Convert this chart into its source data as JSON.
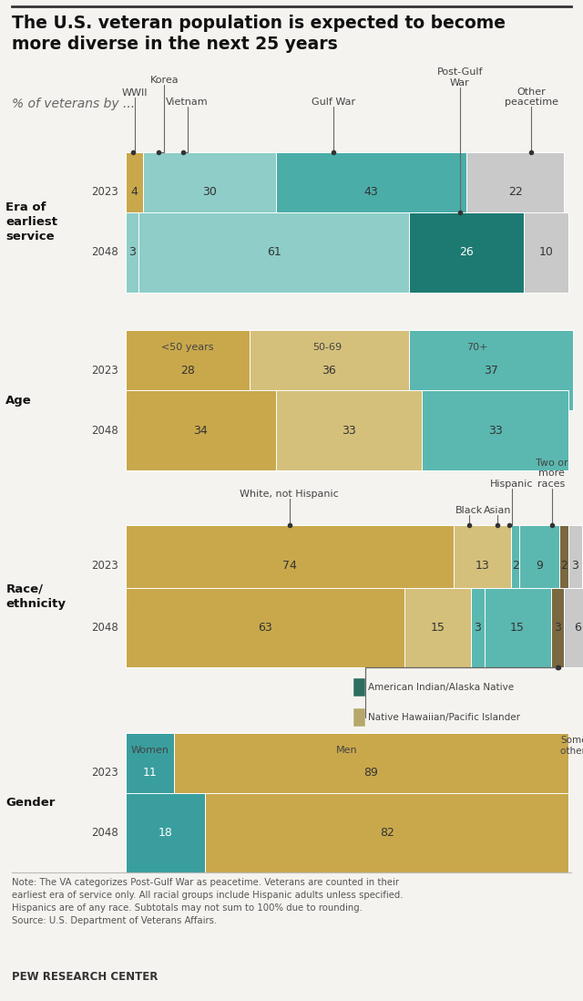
{
  "title": "The U.S. veteran population is expected to become\nmore diverse in the next 25 years",
  "subtitle": "% of veterans by ...",
  "bg": "#f5f3ef",
  "era_2023_vals": [
    4,
    30,
    43,
    22
  ],
  "era_2023_labels": [
    "4",
    "30",
    "43",
    "22"
  ],
  "era_2048_vals": [
    3,
    61,
    26,
    10
  ],
  "era_2048_labels": [
    "3",
    "61",
    "26",
    "10"
  ],
  "era_colors_2023": [
    "#c9a84c",
    "#8ecdc8",
    "#4aada8",
    "#c9c9c9"
  ],
  "era_colors_2048": [
    "#8ecdc8",
    "#8ecdc8",
    "#1d7a72",
    "#c9c9c9"
  ],
  "age_2023_vals": [
    28,
    36,
    37
  ],
  "age_2023_labels": [
    "28",
    "36",
    "37"
  ],
  "age_2048_vals": [
    34,
    33,
    33
  ],
  "age_2048_labels": [
    "34",
    "33",
    "33"
  ],
  "age_colors": [
    "#c9a84c",
    "#d4c07a",
    "#5bb8b0"
  ],
  "race_2023_vals": [
    74,
    13,
    2,
    9,
    2,
    3
  ],
  "race_2023_labels": [
    "74",
    "13",
    "2",
    "9",
    "2",
    "3"
  ],
  "race_2048_vals": [
    63,
    15,
    3,
    15,
    3,
    6
  ],
  "race_2048_labels": [
    "63",
    "15",
    "3",
    "15",
    "3",
    "6"
  ],
  "race_colors": [
    "#c9a84c",
    "#d4c07a",
    "#5bb8b0",
    "#5bb8b0",
    "#7a6840",
    "#c9c9c9"
  ],
  "gender_2023_vals": [
    11,
    89
  ],
  "gender_2023_labels": [
    "11",
    "89"
  ],
  "gender_2048_vals": [
    18,
    82
  ],
  "gender_2048_labels": [
    "18",
    "82"
  ],
  "gender_colors": [
    "#3a9e9e",
    "#c9a84c"
  ],
  "note": "Note: The VA categorizes Post-Gulf War as peacetime. Veterans are counted in their\nearliest era of service only. All racial groups include Hispanic adults unless specified.\nHispanics are of any race. Subtotals may not sum to 100% due to rounding.\nSource: U.S. Department of Veterans Affairs.",
  "footer": "PEW RESEARCH CENTER"
}
